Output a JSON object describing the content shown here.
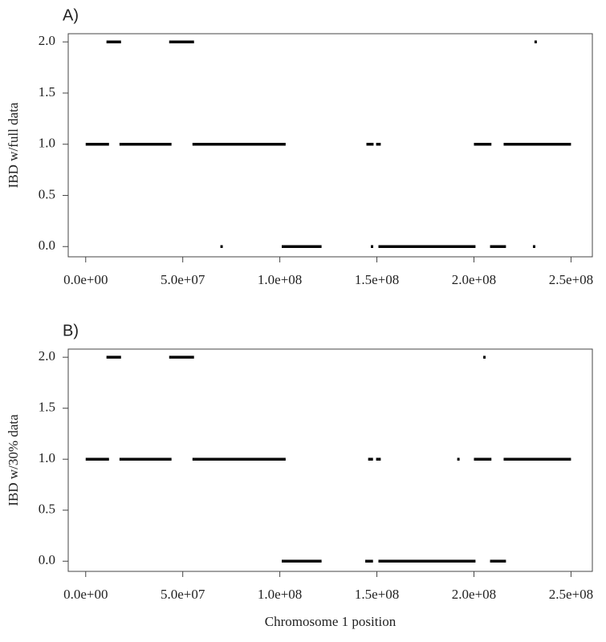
{
  "chart_data": [
    {
      "type": "segment",
      "panel_label": "A)",
      "ylabel": "IBD w/full data",
      "x0": [
        0,
        10700000,
        17400000,
        43000000,
        55000000,
        69500000,
        101000000,
        144600000,
        147300000,
        149600000,
        150800000,
        200000000,
        208300000,
        215300000,
        231500000,
        230700000
      ],
      "x1": [
        12000000,
        18200000,
        44200000,
        55800000,
        103000000,
        70500000,
        121500000,
        148300000,
        147700000,
        152000000,
        200800000,
        209000000,
        216500000,
        250000000,
        232100000,
        231300000
      ],
      "values": [
        1,
        2,
        1,
        2,
        1,
        0,
        0,
        1,
        0,
        1,
        0,
        1,
        0,
        1,
        2,
        0
      ],
      "color": "#000000",
      "xlim": [
        -9000000,
        261000000
      ],
      "xticks": [
        {
          "value": 0,
          "label": "0.0e+00"
        },
        {
          "value": 50000000,
          "label": "5.0e+07"
        },
        {
          "value": 100000000,
          "label": "1.0e+08"
        },
        {
          "value": 150000000,
          "label": "1.5e+08"
        },
        {
          "value": 200000000,
          "label": "2.0e+08"
        },
        {
          "value": 250000000,
          "label": "2.5e+08"
        }
      ],
      "ylim": [
        -0.1,
        2.08
      ],
      "yticks": [
        {
          "value": 0,
          "label": "0.0"
        },
        0.5,
        {
          "value": 1,
          "label": "1.0"
        },
        1.5,
        {
          "value": 2,
          "label": "2.0"
        }
      ]
    },
    {
      "type": "segment",
      "panel_label": "B)",
      "ylabel": "IBD w/30% data",
      "xlabel": "Chromosome 1 position",
      "x0": [
        0,
        10700000,
        17400000,
        43000000,
        55000000,
        101000000,
        144000000,
        145500000,
        149600000,
        150800000,
        191700000,
        205100000,
        200000000,
        208300000,
        215300000
      ],
      "x1": [
        12000000,
        18200000,
        44200000,
        55800000,
        103000000,
        121500000,
        148000000,
        148000000,
        152000000,
        200800000,
        192300000,
        205700000,
        209000000,
        216500000,
        250000000
      ],
      "values": [
        1,
        2,
        1,
        2,
        1,
        0,
        0,
        1,
        1,
        0,
        1,
        2,
        1,
        0,
        1
      ],
      "color": "#000000",
      "xlim": [
        -9000000,
        261000000
      ],
      "xticks": [
        {
          "value": 0,
          "label": "0.0e+00"
        },
        {
          "value": 50000000,
          "label": "5.0e+07"
        },
        {
          "value": 100000000,
          "label": "1.0e+08"
        },
        {
          "value": 150000000,
          "label": "1.5e+08"
        },
        {
          "value": 200000000,
          "label": "2.0e+08"
        },
        {
          "value": 250000000,
          "label": "2.5e+08"
        }
      ],
      "ylim": [
        -0.1,
        2.08
      ],
      "yticks": [
        {
          "value": 0,
          "label": "0.0"
        },
        0.5,
        {
          "value": 1,
          "label": "1.0"
        },
        1.5,
        {
          "value": 2,
          "label": "2.0"
        }
      ]
    }
  ]
}
